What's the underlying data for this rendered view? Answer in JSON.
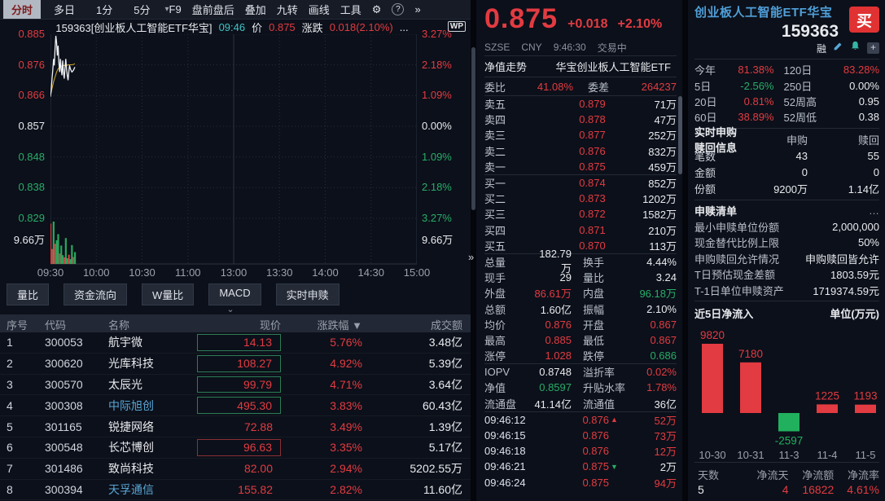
{
  "colors": {
    "red": "#e23b41",
    "green": "#27ad68",
    "white": "#e8eaee",
    "cyan": "#3ec6c8",
    "blue": "#4f9fd8",
    "name_blue": "#58a6d6",
    "gray": "#b9bfca"
  },
  "toolbar": {
    "tabs": [
      {
        "label": "分时",
        "selected": true
      },
      {
        "label": "多日",
        "selected": false
      },
      {
        "label": "1分",
        "selected": false
      },
      {
        "label": "5分",
        "selected": false
      }
    ],
    "caret": "▾",
    "menu": [
      "F9",
      "盘前盘后",
      "叠加",
      "九转",
      "画线",
      "工具"
    ],
    "gear": "⚙",
    "help": "?",
    "more": "»"
  },
  "chart_header": {
    "code_name": "159363[创业板人工智能ETF华宝]",
    "time": "09:46",
    "price_label": "价",
    "price": "0.875",
    "change_label": "涨跌",
    "change": "0.018(2.10%)",
    "ellipsis": "...",
    "wp_badge": "WP"
  },
  "collapse_chevron": "⌄",
  "divider_arrow": "»",
  "chart_data": [
    {
      "type": "line",
      "title": "159363 分时走势",
      "x_labels": [
        "09:30",
        "10:00",
        "10:30",
        "11:00",
        "13:00",
        "13:30",
        "14:00",
        "14:30",
        "15:00"
      ],
      "price_ticks": {
        "values": [
          "0.885",
          "0.876",
          "0.866",
          "0.857",
          "0.848",
          "0.838",
          "0.829"
        ],
        "colors": [
          "r",
          "r",
          "r",
          "w",
          "g",
          "g",
          "g"
        ]
      },
      "pct_ticks": {
        "values": [
          "3.27%",
          "2.18%",
          "1.09%",
          "0.00%",
          "1.09%",
          "2.18%",
          "3.27%"
        ],
        "colors": [
          "r",
          "r",
          "r",
          "w",
          "g",
          "g",
          "g"
        ]
      },
      "ylim": [
        0.829,
        0.885
      ],
      "prev_close": 0.857,
      "session_minutes": 240,
      "volume_axis_label": "9.66万",
      "volume_max": 9.66,
      "price_points": [
        [
          0,
          0.866
        ],
        [
          0.5,
          0.868
        ],
        [
          1,
          0.8715
        ],
        [
          1.5,
          0.874
        ],
        [
          2,
          0.8775
        ],
        [
          2.5,
          0.8755
        ],
        [
          3,
          0.8805
        ],
        [
          3.5,
          0.8845
        ],
        [
          4,
          0.8825
        ],
        [
          4.5,
          0.8785
        ],
        [
          5,
          0.8815
        ],
        [
          5.5,
          0.8765
        ],
        [
          6,
          0.8735
        ],
        [
          6.5,
          0.8775
        ],
        [
          7,
          0.8745
        ],
        [
          7.5,
          0.8725
        ],
        [
          8,
          0.877
        ],
        [
          8.5,
          0.8735
        ],
        [
          9,
          0.8715
        ],
        [
          9.5,
          0.8745
        ],
        [
          10,
          0.8775
        ],
        [
          10.5,
          0.8745
        ],
        [
          11,
          0.8725
        ],
        [
          11.5,
          0.871
        ],
        [
          12,
          0.8735
        ],
        [
          12.5,
          0.8755
        ],
        [
          13,
          0.8745
        ],
        [
          14,
          0.8735
        ],
        [
          15,
          0.874
        ],
        [
          16,
          0.875
        ]
      ],
      "avg_points": [
        [
          0,
          0.8665
        ],
        [
          1,
          0.8685
        ],
        [
          2,
          0.8705
        ],
        [
          3,
          0.872
        ],
        [
          4,
          0.8735
        ],
        [
          5,
          0.8745
        ],
        [
          6,
          0.875
        ],
        [
          7,
          0.8752
        ],
        [
          8,
          0.8754
        ],
        [
          9,
          0.8755
        ],
        [
          10,
          0.8756
        ],
        [
          11,
          0.8756
        ],
        [
          12,
          0.8757
        ],
        [
          13,
          0.8757
        ],
        [
          14,
          0.8757
        ],
        [
          15,
          0.8758
        ],
        [
          16,
          0.876
        ]
      ],
      "volume_values": [
        9.2,
        3.4,
        9.66,
        4.6,
        5.4,
        6.8,
        2.4,
        4.2,
        2.0,
        1.5,
        5.9,
        1.3,
        2.1,
        1.1,
        4.3,
        1.6,
        2.7
      ],
      "volume_colors": [
        "r",
        "r",
        "g",
        "r",
        "g",
        "g",
        "r",
        "g",
        "g",
        "r",
        "g",
        "g",
        "r",
        "g",
        "g",
        "r",
        "g"
      ]
    },
    {
      "type": "bar",
      "title": "近5日净流入",
      "unit": "单位(万元)",
      "categories": [
        "10-30",
        "10-31",
        "11-3",
        "11-4",
        "11-5"
      ],
      "values": [
        9820,
        7180,
        -2597,
        1225,
        1193
      ]
    }
  ],
  "indicator_tabs": [
    "量比",
    "资金流向",
    "W量比",
    "MACD",
    "实时申赎"
  ],
  "stock_table": {
    "headers": [
      "序号",
      "代码",
      "名称",
      "现价",
      "涨跌幅",
      "成交额"
    ],
    "sort_icon": "▼",
    "rows": [
      {
        "seq": "1",
        "code": "300053",
        "name": "航宇微",
        "name_color": "w",
        "price": "14.13",
        "price_box": "g",
        "change": "5.76%",
        "amount": "3.48亿"
      },
      {
        "seq": "2",
        "code": "300620",
        "name": "光库科技",
        "name_color": "w",
        "price": "108.27",
        "price_box": "g",
        "change": "4.92%",
        "amount": "5.39亿"
      },
      {
        "seq": "3",
        "code": "300570",
        "name": "太辰光",
        "name_color": "w",
        "price": "99.79",
        "price_box": "g",
        "change": "4.71%",
        "amount": "3.64亿"
      },
      {
        "seq": "4",
        "code": "300308",
        "name": "中际旭创",
        "name_color": "n",
        "price": "495.30",
        "price_box": "g",
        "change": "3.83%",
        "amount": "60.43亿"
      },
      {
        "seq": "5",
        "code": "301165",
        "name": "锐捷网络",
        "name_color": "w",
        "price": "72.88",
        "price_box": "",
        "change": "3.49%",
        "amount": "1.39亿"
      },
      {
        "seq": "6",
        "code": "300548",
        "name": "长芯博创",
        "name_color": "w",
        "price": "96.63",
        "price_box": "r",
        "change": "3.35%",
        "amount": "5.17亿"
      },
      {
        "seq": "7",
        "code": "301486",
        "name": "致尚科技",
        "name_color": "w",
        "price": "82.00",
        "price_box": "",
        "change": "2.94%",
        "amount": "5202.55万"
      },
      {
        "seq": "8",
        "code": "300394",
        "name": "天孚通信",
        "name_color": "n",
        "price": "155.82",
        "price_box": "",
        "change": "2.82%",
        "amount": "11.60亿"
      }
    ]
  },
  "quote": {
    "price": "0.875",
    "change": "+0.018",
    "change_pct": "+2.10%",
    "exchange": "SZSE",
    "currency": "CNY",
    "time": "9:46:30",
    "status": "交易中",
    "nav_label": "净值走势",
    "nav_name": "华宝创业板人工智能ETF",
    "weibi_label": "委比",
    "weibi": "41.08%",
    "weicha_label": "委差",
    "weicha": "264237",
    "sells": [
      [
        "卖五",
        "0.879",
        "71万"
      ],
      [
        "卖四",
        "0.878",
        "47万"
      ],
      [
        "卖三",
        "0.877",
        "252万"
      ],
      [
        "卖二",
        "0.876",
        "832万"
      ],
      [
        "卖一",
        "0.875",
        "459万"
      ]
    ],
    "buys": [
      [
        "买一",
        "0.874",
        "852万"
      ],
      [
        "买二",
        "0.873",
        "1202万"
      ],
      [
        "买三",
        "0.872",
        "1582万"
      ],
      [
        "买四",
        "0.871",
        "210万"
      ],
      [
        "买五",
        "0.870",
        "113万"
      ]
    ],
    "stats": [
      [
        "总量",
        "182.79万",
        "w",
        "换手",
        "4.44%",
        "w"
      ],
      [
        "现手",
        "29",
        "w",
        "量比",
        "3.24",
        "w"
      ],
      [
        "外盘",
        "86.61万",
        "r",
        "内盘",
        "96.18万",
        "g"
      ],
      [
        "总额",
        "1.60亿",
        "w",
        "振幅",
        "2.10%",
        "w"
      ],
      [
        "均价",
        "0.876",
        "r",
        "开盘",
        "0.867",
        "r"
      ],
      [
        "最高",
        "0.885",
        "r",
        "最低",
        "0.867",
        "r"
      ],
      [
        "涨停",
        "1.028",
        "r",
        "跌停",
        "0.686",
        "g"
      ]
    ],
    "stats2": [
      [
        "IOPV",
        "0.8748",
        "w",
        "溢折率",
        "0.02%",
        "r"
      ],
      [
        "净值",
        "0.8597",
        "g",
        "升贴水率",
        "1.78%",
        "r"
      ],
      [
        "流通盘",
        "41.14亿",
        "w",
        "流通值",
        "36亿",
        "w"
      ]
    ],
    "ticks": [
      [
        "09:46:12",
        "0.876",
        "up",
        "52万",
        "r"
      ],
      [
        "09:46:15",
        "0.876",
        "",
        "73万",
        "r"
      ],
      [
        "09:46:18",
        "0.876",
        "",
        "12万",
        "r"
      ],
      [
        "09:46:21",
        "0.875",
        "down",
        "2万",
        "w"
      ],
      [
        "09:46:24",
        "0.875",
        "",
        "94万",
        "r"
      ]
    ]
  },
  "etf": {
    "name": "创业板人工智能ETF华宝",
    "code": "159363",
    "buy_button": "买",
    "margin_badge": "融",
    "perf": [
      [
        "今年",
        "81.38%",
        "r",
        "120日",
        "83.28%",
        "r"
      ],
      [
        "5日",
        "-2.56%",
        "g",
        "250日",
        "0.00%",
        "w"
      ],
      [
        "20日",
        "0.81%",
        "r",
        "52周高",
        "0.95",
        "w"
      ],
      [
        "60日",
        "38.89%",
        "r",
        "52周低",
        "0.38",
        "w"
      ]
    ],
    "subscription": {
      "title": "实时申购赎回信息",
      "col1": "申购",
      "col2": "赎回",
      "rows": [
        [
          "笔数",
          "43",
          "55"
        ],
        [
          "金额",
          "0",
          "0"
        ],
        [
          "份额",
          "9200万",
          "1.14亿"
        ]
      ]
    },
    "pcf": {
      "title": "申赎清单",
      "more": "…",
      "rows": [
        [
          "最小申赎单位份额",
          "2,000,000"
        ],
        [
          "现金替代比例上限",
          "50%"
        ],
        [
          "申购赎回允许情况",
          "申购赎回皆允许"
        ],
        [
          "T日预估现金差额",
          "1803.59元"
        ],
        [
          "T-1日单位申赎资产",
          "1719374.59元"
        ]
      ]
    },
    "netflow": {
      "title": "近5日净流入",
      "unit": "单位(万元)",
      "footer": [
        [
          "天数",
          "5",
          "w"
        ],
        [
          "净流天",
          "4",
          "r"
        ],
        [
          "净流额",
          "16822",
          "r"
        ],
        [
          "净流率",
          "4.61%",
          "r"
        ]
      ]
    }
  }
}
